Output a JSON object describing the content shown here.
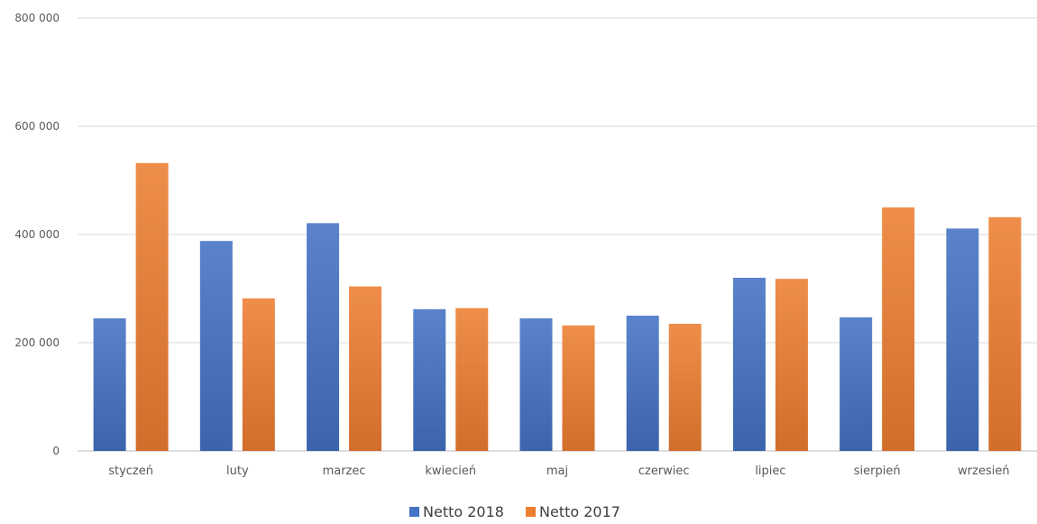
{
  "chart_data": {
    "type": "bar",
    "categories": [
      "styczeń",
      "luty",
      "marzec",
      "kwiecień",
      "maj",
      "czerwiec",
      "lipiec",
      "sierpień",
      "wrzesień"
    ],
    "series": [
      {
        "name": "Netto 2018",
        "color": "#4472c4",
        "values": [
          245000,
          388000,
          421000,
          262000,
          245000,
          250000,
          320000,
          247000,
          411000
        ]
      },
      {
        "name": "Netto 2017",
        "color": "#ed7d31",
        "values": [
          532000,
          282000,
          304000,
          264000,
          232000,
          235000,
          318000,
          450000,
          432000
        ]
      }
    ],
    "yticks": [
      0,
      200000,
      400000,
      600000,
      800000
    ],
    "ytick_labels": [
      "0",
      "200 000",
      "400 000",
      "600 000",
      "800 000"
    ],
    "ylim": [
      0,
      800000
    ],
    "grid": true,
    "legend_position": "bottom",
    "title": "",
    "xlabel": "",
    "ylabel": ""
  }
}
